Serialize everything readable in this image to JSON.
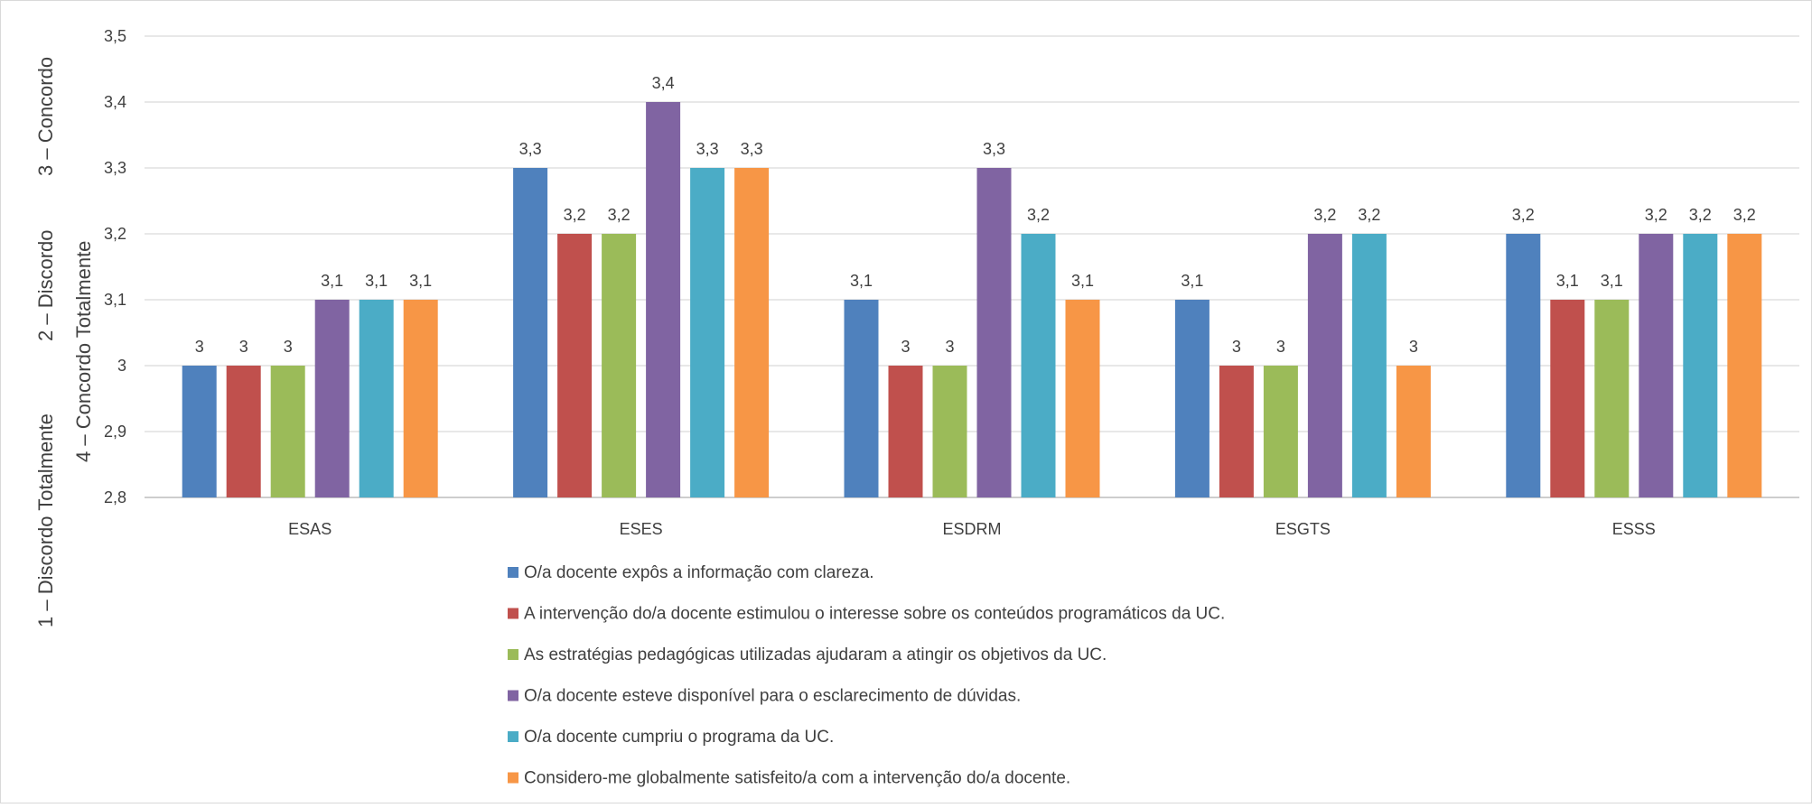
{
  "chart_data": {
    "type": "bar",
    "title": "",
    "ylabel_lines": [
      "1 – Discordo Totalmente",
      "2 – Discordo",
      "3 – Concordo",
      "4 – Concordo Totalmente"
    ],
    "categories": [
      "ESAS",
      "ESES",
      "ESDRM",
      "ESGTS",
      "ESSS"
    ],
    "ylim": [
      2.8,
      3.5
    ],
    "yticks": [
      "2,8",
      "2,9",
      "3",
      "3,1",
      "3,2",
      "3,3",
      "3,4",
      "3,5"
    ],
    "grid": true,
    "legend_position": "bottom",
    "series": [
      {
        "name": "O/a docente expôs a informação com clareza.",
        "color": "#4F81BD",
        "values": [
          3.0,
          3.3,
          3.1,
          3.1,
          3.2
        ],
        "labels": [
          "3",
          "3,3",
          "3,1",
          "3,1",
          "3,2"
        ]
      },
      {
        "name": "A intervenção do/a docente estimulou o interesse sobre os conteúdos programáticos da UC.",
        "color": "#C0504D",
        "values": [
          3.0,
          3.2,
          3.0,
          3.0,
          3.1
        ],
        "labels": [
          "3",
          "3,2",
          "3",
          "3",
          "3,1"
        ]
      },
      {
        "name": "As estratégias pedagógicas utilizadas ajudaram a atingir os objetivos da UC.",
        "color": "#9BBB59",
        "values": [
          3.0,
          3.2,
          3.0,
          3.0,
          3.1
        ],
        "labels": [
          "3",
          "3,2",
          "3",
          "3",
          "3,1"
        ]
      },
      {
        "name": "O/a docente esteve disponível para o esclarecimento de dúvidas.",
        "color": "#8064A2",
        "values": [
          3.1,
          3.4,
          3.3,
          3.2,
          3.2
        ],
        "labels": [
          "3,1",
          "3,4",
          "3,3",
          "3,2",
          "3,2"
        ]
      },
      {
        "name": "O/a docente cumpriu o programa da UC.",
        "color": "#4BACC6",
        "values": [
          3.1,
          3.3,
          3.2,
          3.2,
          3.2
        ],
        "labels": [
          "3,1",
          "3,3",
          "3,2",
          "3,2",
          "3,2"
        ]
      },
      {
        "name": "Considero-me globalmente satisfeito/a com a intervenção do/a docente.",
        "color": "#F79646",
        "values": [
          3.1,
          3.3,
          3.1,
          3.0,
          3.2
        ],
        "labels": [
          "3,1",
          "3,3",
          "3,1",
          "3",
          "3,2"
        ]
      }
    ]
  }
}
